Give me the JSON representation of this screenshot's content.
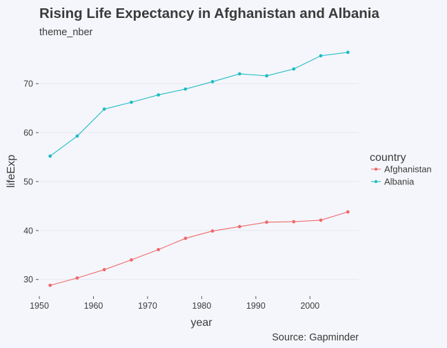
{
  "chart_data": {
    "type": "line",
    "title": "Rising Life Expectancy in Afghanistan and Albania",
    "subtitle": "theme_nber",
    "caption": "Source: Gapminder",
    "xlabel": "year",
    "ylabel": "lifeExp",
    "xlim": [
      1950,
      2009
    ],
    "ylim": [
      27,
      77.5
    ],
    "xticks": [
      1950,
      1960,
      1970,
      1980,
      1990,
      2000
    ],
    "yticks": [
      30,
      40,
      50,
      60,
      70
    ],
    "grid": "horizontal",
    "legend": {
      "title": "country",
      "placement": "right"
    },
    "x": [
      1952,
      1957,
      1962,
      1967,
      1972,
      1977,
      1982,
      1987,
      1992,
      1997,
      2002,
      2007
    ],
    "series": [
      {
        "name": "Afghanistan",
        "color": "#f0686a",
        "values": [
          28.8,
          30.3,
          32.0,
          34.0,
          36.1,
          38.4,
          39.9,
          40.8,
          41.7,
          41.8,
          42.1,
          43.8
        ]
      },
      {
        "name": "Albania",
        "color": "#1fbcc3",
        "values": [
          55.2,
          59.3,
          64.8,
          66.2,
          67.7,
          68.9,
          70.4,
          72.0,
          71.6,
          73.0,
          75.7,
          76.4
        ]
      }
    ]
  }
}
